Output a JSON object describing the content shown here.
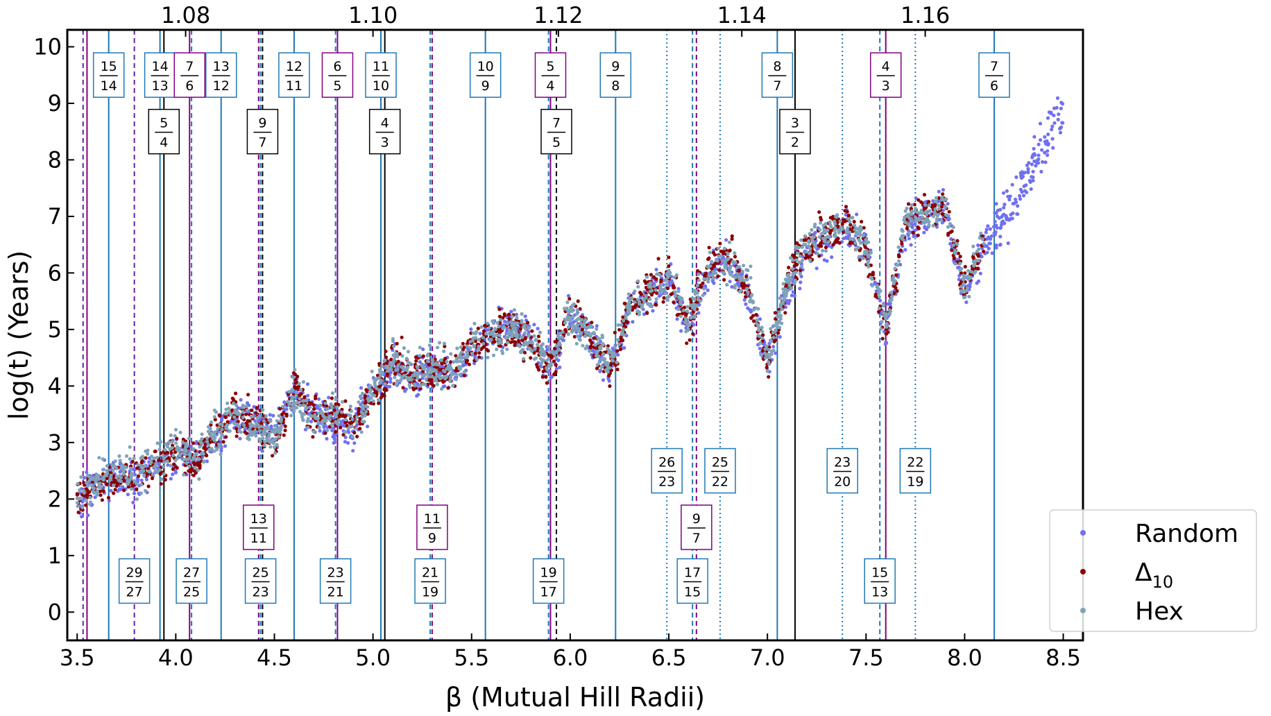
{
  "chart_data": {
    "type": "scatter",
    "xlabel": "β (Mutual Hill Radii)",
    "ylabel": "log(t) (Years)",
    "xlim": [
      3.45,
      8.6
    ],
    "ylim": [
      -0.5,
      10.3
    ],
    "x_ticks": [
      3.5,
      4.0,
      4.5,
      5.0,
      5.5,
      6.0,
      6.5,
      7.0,
      7.5,
      8.0,
      8.5
    ],
    "x_tick_labels": [
      "3.5",
      "4.0",
      "4.5",
      "5.0",
      "5.5",
      "6.0",
      "6.5",
      "7.0",
      "7.5",
      "8.0",
      "8.5"
    ],
    "y_ticks": [
      0,
      1,
      2,
      3,
      4,
      5,
      6,
      7,
      8,
      9,
      10
    ],
    "y_tick_labels": [
      "0",
      "1",
      "2",
      "3",
      "4",
      "5",
      "6",
      "7",
      "8",
      "9",
      "10"
    ],
    "top_axis": {
      "ticks": [
        {
          "label": "1.08",
          "beta": 4.05
        },
        {
          "label": "1.10",
          "beta": 5.0
        },
        {
          "label": "1.12",
          "beta": 5.94
        },
        {
          "label": "1.14",
          "beta": 6.87
        },
        {
          "label": "1.16",
          "beta": 7.8
        }
      ]
    },
    "legend": {
      "position": "bottom-right",
      "entries": [
        {
          "label": "Random",
          "color": "#7170f0"
        },
        {
          "label": "Δ",
          "sub": "10",
          "color": "#8b0000"
        },
        {
          "label": "Hex",
          "color": "#7fa3b8"
        }
      ]
    },
    "colors": {
      "blue": "#1f77b4",
      "purple": "#800080",
      "black": "#000000",
      "dashed_purple": "#6a1fa8"
    },
    "series": [
      {
        "name": "Random",
        "color": "#7170f0",
        "x": [
          3.5,
          3.6,
          3.7,
          3.8,
          3.9,
          4.0,
          4.1,
          4.2,
          4.3,
          4.4,
          4.5,
          4.6,
          4.7,
          4.8,
          4.9,
          5.0,
          5.1,
          5.2,
          5.3,
          5.4,
          5.5,
          5.6,
          5.7,
          5.8,
          5.9,
          6.0,
          6.1,
          6.2,
          6.3,
          6.4,
          6.5,
          6.6,
          6.7,
          6.8,
          6.9,
          7.0,
          7.1,
          7.2,
          7.3,
          7.4,
          7.5,
          7.6,
          7.7,
          7.8,
          7.9,
          8.0,
          8.1,
          8.2,
          8.3,
          8.4,
          8.5
        ],
        "y": [
          2.0,
          2.2,
          2.4,
          2.3,
          2.6,
          2.7,
          2.8,
          3.0,
          3.3,
          3.4,
          3.1,
          3.9,
          3.5,
          3.4,
          3.2,
          3.9,
          4.4,
          4.1,
          4.3,
          4.2,
          4.6,
          4.9,
          5.1,
          4.8,
          4.3,
          5.2,
          4.9,
          4.2,
          5.3,
          5.6,
          5.9,
          5.0,
          6.0,
          6.2,
          5.6,
          4.4,
          5.6,
          6.4,
          6.6,
          6.8,
          6.5,
          5.0,
          6.8,
          7.0,
          7.2,
          5.6,
          6.5,
          7.0,
          7.6,
          8.2,
          8.9
        ]
      },
      {
        "name": "Δ10",
        "color": "#8b0000",
        "x": [
          3.5,
          3.6,
          3.7,
          3.8,
          3.9,
          4.0,
          4.1,
          4.2,
          4.3,
          4.4,
          4.5,
          4.6,
          4.7,
          4.8,
          4.9,
          5.0,
          5.1,
          5.2,
          5.3,
          5.4,
          5.5,
          5.6,
          5.7,
          5.8,
          5.9,
          6.0,
          6.1,
          6.2,
          6.3,
          6.4,
          6.5,
          6.6,
          6.7,
          6.8,
          6.9,
          7.0,
          7.1,
          7.2,
          7.3,
          7.4,
          7.5,
          7.6,
          7.7,
          7.8,
          7.9,
          8.0,
          8.1
        ],
        "y": [
          2.1,
          2.2,
          2.4,
          2.4,
          2.6,
          2.8,
          2.6,
          3.2,
          3.5,
          3.4,
          3.0,
          4.0,
          3.4,
          3.5,
          3.3,
          3.8,
          4.5,
          4.2,
          4.3,
          4.3,
          4.7,
          4.9,
          5.0,
          4.7,
          4.3,
          5.3,
          4.9,
          4.3,
          5.4,
          5.7,
          5.9,
          5.1,
          6.1,
          6.3,
          5.7,
          4.4,
          5.8,
          6.5,
          6.7,
          6.9,
          6.4,
          5.0,
          6.9,
          7.1,
          7.2,
          5.7,
          6.6
        ]
      },
      {
        "name": "Hex",
        "color": "#7fa3b8",
        "x": [
          3.5,
          3.6,
          3.7,
          3.8,
          3.9,
          4.0,
          4.1,
          4.2,
          4.3,
          4.4,
          4.5,
          4.6,
          4.7,
          4.8,
          4.9,
          5.0,
          5.1,
          5.2,
          5.3,
          5.4,
          5.5,
          5.6,
          5.7,
          5.8,
          5.9,
          6.0,
          6.1,
          6.2,
          6.3,
          6.4,
          6.5,
          6.6,
          6.7,
          6.8,
          6.9,
          7.0,
          7.1,
          7.2,
          7.3,
          7.4,
          7.5,
          7.6,
          7.7,
          7.8,
          7.9,
          8.0,
          8.1
        ],
        "y": [
          2.1,
          2.3,
          2.5,
          2.4,
          2.7,
          2.9,
          2.7,
          3.2,
          3.4,
          3.3,
          3.1,
          3.9,
          3.4,
          3.6,
          3.3,
          3.9,
          4.5,
          4.2,
          4.4,
          4.2,
          4.8,
          4.9,
          5.0,
          4.8,
          4.4,
          5.3,
          4.9,
          4.4,
          5.4,
          5.6,
          5.9,
          5.2,
          6.1,
          6.2,
          5.8,
          4.5,
          5.8,
          6.5,
          6.7,
          6.9,
          6.4,
          5.1,
          6.9,
          7.0,
          7.2,
          5.7,
          6.6
        ]
      }
    ],
    "resonances": [
      {
        "beta": 3.53,
        "style": "dashed",
        "color": "#6a1fa8"
      },
      {
        "beta": 3.55,
        "style": "solid",
        "color": "#800080"
      },
      {
        "beta": 3.66,
        "style": "solid",
        "color": "#1f77b4",
        "label": {
          "num": "15",
          "den": "14",
          "y": 9.5,
          "color": "#1f77b4"
        }
      },
      {
        "beta": 3.79,
        "style": "dashed",
        "color": "#6a1fa8",
        "label": {
          "num": "29",
          "den": "27",
          "y": 0.55,
          "color": "#1f77b4"
        }
      },
      {
        "beta": 3.92,
        "style": "solid",
        "color": "#1f77b4",
        "label": {
          "num": "14",
          "den": "13",
          "y": 9.5,
          "color": "#1f77b4"
        }
      },
      {
        "beta": 3.94,
        "style": "solid",
        "color": "#000000",
        "label": {
          "num": "5",
          "den": "4",
          "y": 8.5,
          "color": "#000000"
        }
      },
      {
        "beta": 4.07,
        "style": "solid",
        "color": "#800080",
        "label": {
          "num": "7",
          "den": "6",
          "y": 9.5,
          "color": "#800080"
        }
      },
      {
        "beta": 4.08,
        "style": "dashed",
        "color": "#1f77b4",
        "label": {
          "num": "27",
          "den": "25",
          "y": 0.55,
          "color": "#1f77b4"
        }
      },
      {
        "beta": 4.23,
        "style": "solid",
        "color": "#1f77b4",
        "label": {
          "num": "13",
          "den": "12",
          "y": 9.5,
          "color": "#1f77b4"
        }
      },
      {
        "beta": 4.42,
        "style": "dashed",
        "color": "#800080",
        "label": {
          "num": "13",
          "den": "11",
          "y": 1.5,
          "color": "#800080"
        }
      },
      {
        "beta": 4.43,
        "style": "dashed",
        "color": "#1f77b4",
        "label": {
          "num": "25",
          "den": "23",
          "y": 0.55,
          "color": "#1f77b4"
        }
      },
      {
        "beta": 4.44,
        "style": "dashed",
        "color": "#000000",
        "label": {
          "num": "9",
          "den": "7",
          "y": 8.5,
          "color": "#000000"
        }
      },
      {
        "beta": 4.6,
        "style": "solid",
        "color": "#1f77b4",
        "label": {
          "num": "12",
          "den": "11",
          "y": 9.5,
          "color": "#1f77b4"
        }
      },
      {
        "beta": 4.81,
        "style": "dashed",
        "color": "#1f77b4",
        "label": {
          "num": "23",
          "den": "21",
          "y": 0.55,
          "color": "#1f77b4"
        }
      },
      {
        "beta": 4.82,
        "style": "solid",
        "color": "#800080",
        "label": {
          "num": "6",
          "den": "5",
          "y": 9.5,
          "color": "#800080"
        }
      },
      {
        "beta": 5.04,
        "style": "solid",
        "color": "#1f77b4",
        "label": {
          "num": "11",
          "den": "10",
          "y": 9.5,
          "color": "#1f77b4"
        }
      },
      {
        "beta": 5.06,
        "style": "solid",
        "color": "#000000",
        "label": {
          "num": "4",
          "den": "3",
          "y": 8.5,
          "color": "#000000"
        }
      },
      {
        "beta": 5.29,
        "style": "dashed",
        "color": "#1f77b4",
        "label": {
          "num": "21",
          "den": "19",
          "y": 0.55,
          "color": "#1f77b4"
        }
      },
      {
        "beta": 5.3,
        "style": "dashed",
        "color": "#800080",
        "label": {
          "num": "11",
          "den": "9",
          "y": 1.5,
          "color": "#800080"
        }
      },
      {
        "beta": 5.57,
        "style": "solid",
        "color": "#1f77b4",
        "label": {
          "num": "10",
          "den": "9",
          "y": 9.5,
          "color": "#1f77b4"
        }
      },
      {
        "beta": 5.89,
        "style": "dashed",
        "color": "#1f77b4",
        "label": {
          "num": "19",
          "den": "17",
          "y": 0.55,
          "color": "#1f77b4"
        }
      },
      {
        "beta": 5.9,
        "style": "solid",
        "color": "#800080",
        "label": {
          "num": "5",
          "den": "4",
          "y": 9.5,
          "color": "#800080"
        }
      },
      {
        "beta": 5.93,
        "style": "dashed",
        "color": "#000000",
        "label": {
          "num": "7",
          "den": "5",
          "y": 8.5,
          "color": "#000000"
        }
      },
      {
        "beta": 6.23,
        "style": "solid",
        "color": "#1f77b4",
        "label": {
          "num": "9",
          "den": "8",
          "y": 9.5,
          "color": "#1f77b4"
        }
      },
      {
        "beta": 6.49,
        "style": "dotted",
        "color": "#1f77b4",
        "label": {
          "num": "26",
          "den": "23",
          "y": 2.5,
          "color": "#1f77b4"
        }
      },
      {
        "beta": 6.62,
        "style": "dashed",
        "color": "#1f77b4",
        "label": {
          "num": "17",
          "den": "15",
          "y": 0.55,
          "color": "#1f77b4"
        }
      },
      {
        "beta": 6.64,
        "style": "dashed",
        "color": "#800080",
        "label": {
          "num": "9",
          "den": "7",
          "y": 1.5,
          "color": "#800080"
        }
      },
      {
        "beta": 6.76,
        "style": "dotted",
        "color": "#1f77b4",
        "label": {
          "num": "25",
          "den": "22",
          "y": 2.5,
          "color": "#1f77b4"
        }
      },
      {
        "beta": 7.05,
        "style": "solid",
        "color": "#1f77b4",
        "label": {
          "num": "8",
          "den": "7",
          "y": 9.5,
          "color": "#1f77b4"
        }
      },
      {
        "beta": 7.14,
        "style": "solid",
        "color": "#000000",
        "label": {
          "num": "3",
          "den": "2",
          "y": 8.5,
          "color": "#000000"
        }
      },
      {
        "beta": 7.38,
        "style": "dotted",
        "color": "#1f77b4",
        "label": {
          "num": "23",
          "den": "20",
          "y": 2.5,
          "color": "#1f77b4"
        }
      },
      {
        "beta": 7.57,
        "style": "dashed",
        "color": "#1f77b4",
        "label": {
          "num": "15",
          "den": "13",
          "y": 0.55,
          "color": "#1f77b4"
        }
      },
      {
        "beta": 7.6,
        "style": "solid",
        "color": "#800080",
        "label": {
          "num": "4",
          "den": "3",
          "y": 9.5,
          "color": "#800080"
        }
      },
      {
        "beta": 7.75,
        "style": "dotted",
        "color": "#1f77b4",
        "label": {
          "num": "22",
          "den": "19",
          "y": 2.5,
          "color": "#1f77b4"
        }
      },
      {
        "beta": 8.15,
        "style": "solid",
        "color": "#1f77b4",
        "label": {
          "num": "7",
          "den": "6",
          "y": 9.5,
          "color": "#1f77b4"
        }
      }
    ]
  }
}
